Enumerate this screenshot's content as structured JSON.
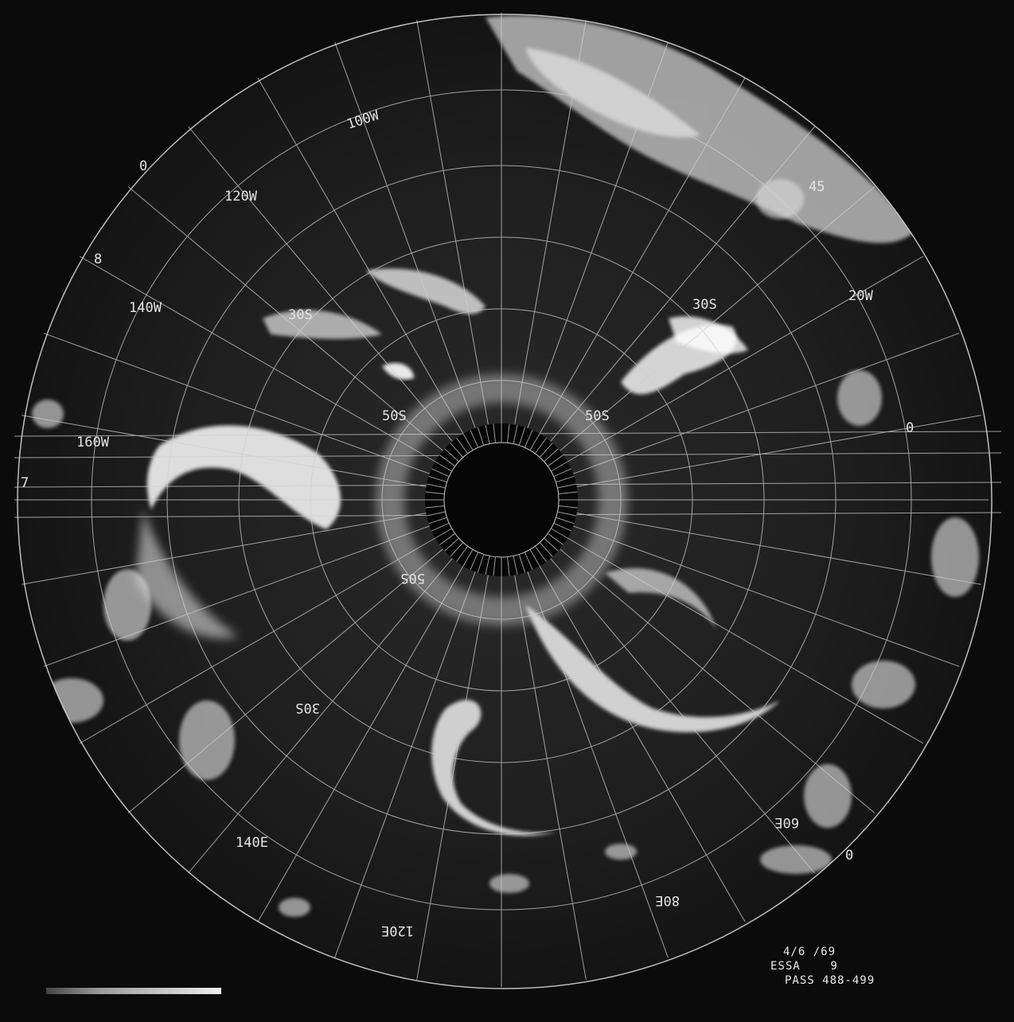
{
  "caption": {
    "date": "4/6 /69",
    "satellite": "ESSA    9",
    "pass": "PASS 488-499"
  },
  "grid_labels": {
    "lon_100w": "100W",
    "lon_120w": "120W",
    "lon_140w": "140W",
    "lon_160w": "160W",
    "lon_20w": "20W",
    "lon_0": "0",
    "lon_45": "45",
    "lon_140e": "140E",
    "lon_120e": "120E",
    "lon_80e": "80E",
    "lon_60e": "60E",
    "lon_0_bottom": "0",
    "lat_30s_left": "30S",
    "lat_30s_right": "30S",
    "lat_50s_left": "50S",
    "lat_50s_right": "50S",
    "lat_30s_lower": "30S",
    "lat_50s_lower": "50S",
    "edge_0_top": "0",
    "edge_8": "8",
    "edge_7": "7"
  }
}
